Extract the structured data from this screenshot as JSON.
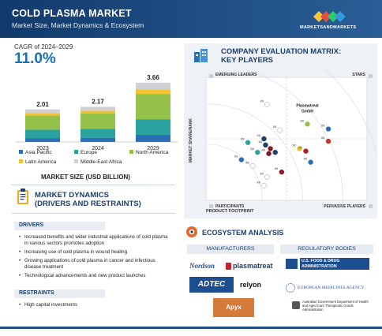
{
  "header": {
    "title": "COLD PLASMA MARKET",
    "subtitle": "Market Size, Market Dynamics & Ecosystem",
    "brand": "MARKETSANDMARKETS"
  },
  "cagr": {
    "label": "CAGR of 2024–2029",
    "value": "11.0%"
  },
  "chart_data": {
    "type": "bar",
    "stacked": true,
    "categories": [
      "2023",
      "2024",
      "2029"
    ],
    "totals": [
      "2.01",
      "2.17",
      "3.66"
    ],
    "xlabel": "MARKET SIZE (USD BILLION)",
    "ylim": [
      0,
      3.9
    ],
    "series": [
      {
        "name": "Asia Pacific",
        "color": "#2b6fb6",
        "values": [
          0.24,
          0.26,
          0.44
        ]
      },
      {
        "name": "Europe",
        "color": "#2aa3a0",
        "values": [
          0.52,
          0.56,
          0.95
        ]
      },
      {
        "name": "North America",
        "color": "#94c24a",
        "values": [
          0.87,
          0.94,
          1.58
        ]
      },
      {
        "name": "Latin America",
        "color": "#f2c230",
        "values": [
          0.16,
          0.17,
          0.28
        ]
      },
      {
        "name": "Middle-East Africa",
        "color": "#cfcfd4",
        "values": [
          0.22,
          0.24,
          0.41
        ]
      }
    ],
    "legend_position": "bottom"
  },
  "dynamics": {
    "title_line1": "MARKET DYNAMICS",
    "title_line2": "(DRIVERS AND RESTRAINTS)",
    "drivers_label": "DRIVERS",
    "drivers": [
      "Increased benefits and wider industrial applications of cold plasma in various sectors promotes  adoption",
      "Increasing use of cold plasma in wound healing",
      "Growing applications of cold plasma in cancer and infectious disease treatment",
      "Technological advancements and new product launches"
    ],
    "restraints_label": "RESTRAINTS",
    "restraints": [
      "High capital investments"
    ]
  },
  "matrix": {
    "title_line1": "COMPANY EVALUATION MATRIX:",
    "title_line2": "KEY PLAYERS",
    "quadrants": {
      "top_left": "EMERGING LEADERS",
      "top_right": "STARS",
      "bottom_left": "PARTICIPANTS",
      "bottom_right": "PERVASIVE PLAYERS"
    },
    "x_axis": "PRODUCT FOOTPRINT",
    "y_axis": "MARKET SHARE/RANK",
    "highlight_label": "Plasmatreat GmbH",
    "point_label": "xx",
    "points": [
      {
        "x": 0.38,
        "y": 0.78,
        "color": "#ffffff",
        "label": "xx"
      },
      {
        "x": 0.63,
        "y": 0.62,
        "color": "#94c24a",
        "label": "xx"
      },
      {
        "x": 0.76,
        "y": 0.58,
        "color": "#2b6fb6",
        "label": "xx"
      },
      {
        "x": 0.46,
        "y": 0.57,
        "color": "#ffffff",
        "label": "xx"
      },
      {
        "x": 0.36,
        "y": 0.5,
        "color": "#1f3f66",
        "label": "xx"
      },
      {
        "x": 0.26,
        "y": 0.47,
        "color": "#2aa3a0",
        "label": "xx"
      },
      {
        "x": 0.37,
        "y": 0.45,
        "color": "#1b3f6e",
        "label": "xx"
      },
      {
        "x": 0.76,
        "y": 0.48,
        "color": "#c0392b",
        "label": "xx"
      },
      {
        "x": 0.4,
        "y": 0.42,
        "color": "#8e1b24",
        "label": "xx"
      },
      {
        "x": 0.58,
        "y": 0.42,
        "color": "#f2c230",
        "label": "xx"
      },
      {
        "x": 0.62,
        "y": 0.4,
        "color": "#b01e2f",
        "label": "xx"
      },
      {
        "x": 0.32,
        "y": 0.39,
        "color": "#2aa3a0",
        "label": "xx"
      },
      {
        "x": 0.43,
        "y": 0.39,
        "color": "#1f3f66",
        "label": "xx"
      },
      {
        "x": 0.39,
        "y": 0.38,
        "color": "#7a1a2a",
        "label": "xx"
      },
      {
        "x": 0.22,
        "y": 0.33,
        "color": "#2b6fb6",
        "label": "xx"
      },
      {
        "x": 0.65,
        "y": 0.31,
        "color": "#2b6fb6",
        "label": "xx"
      },
      {
        "x": 0.29,
        "y": 0.28,
        "color": "#ffffff",
        "label": "xx"
      },
      {
        "x": 0.47,
        "y": 0.23,
        "color": "#8e1b24",
        "label": "xx"
      },
      {
        "x": 0.38,
        "y": 0.19,
        "color": "#ffffff",
        "label": "xx"
      },
      {
        "x": 0.36,
        "y": 0.12,
        "color": "#ffffff",
        "label": "xx"
      }
    ]
  },
  "ecosystem": {
    "title": "ECOSYSTEM ANALYSIS",
    "manufacturers_label": "MANUFACTURERS",
    "regulatory_label": "REGULATORY BODIES",
    "manufacturers": [
      "Nordson",
      "plasmatreat",
      "ADTEC",
      "relyon",
      "Apyx MEDICAL"
    ],
    "regulators": [
      "U.S. FOOD & DRUG ADMINISTRATION",
      "EUROPEAN MEDICINES AGENCY",
      "Australian Government Department of Health and Aged Care Therapeutic Goods Administration"
    ]
  }
}
